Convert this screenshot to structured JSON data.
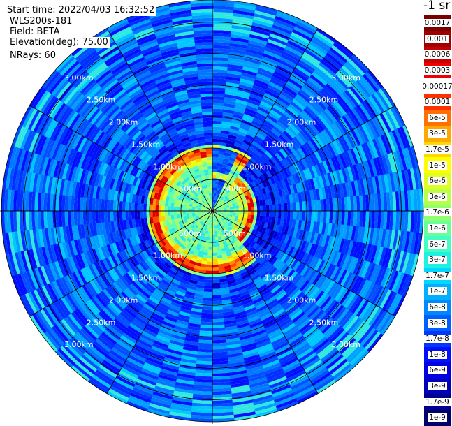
{
  "info": {
    "start_time": "Start time: 2022/04/03 16:32:52",
    "device": "WLS200s-181",
    "field": "Field: BETA",
    "elevation": "Elevation(deg): 75.00",
    "nrays": "NRays: 60"
  },
  "colorbar": {
    "unit_label": "-1 sr",
    "labels": [
      "0.0017",
      "0.001",
      "0.0006",
      "0.0003",
      "0.00017",
      "0.0001",
      "6e-5",
      "3e-5",
      "1.7e-5",
      "1e-5",
      "6e-6",
      "3e-6",
      "1.7e-6",
      "1e-6",
      "6e-7",
      "3e-7",
      "1.7e-7",
      "1e-7",
      "6e-8",
      "3e-8",
      "1.7e-8",
      "1e-8",
      "6e-9",
      "3e-9",
      "1.7e-9",
      "1e-9"
    ],
    "colors": [
      "#7a0000",
      "#a00000",
      "#c80000",
      "#ee0000",
      "#ffffff",
      "#ff3000",
      "#ff7000",
      "#ffa800",
      "#ffd800",
      "#ffff00",
      "#e0ff20",
      "#b8ff48",
      "#90ff70",
      "#68ff98",
      "#40ffc0",
      "#20f0e0",
      "#00d8ff",
      "#00b0ff",
      "#0088ff",
      "#0060ff",
      "#0038ff",
      "#0010ff",
      "#0000e0",
      "#0000b8",
      "#000090",
      "#00006a"
    ]
  },
  "chart_data": {
    "type": "heatmap",
    "projection": "polar (PPI)",
    "field": "BETA",
    "elevation_deg": 75.0,
    "n_rays": 60,
    "range_rings_labels": [
      "500m",
      "1.00km",
      "1.50km",
      "2.00km",
      "2.50km",
      "3.00km"
    ],
    "range_rings_m": [
      500,
      1000,
      1500,
      2000,
      2500,
      3000
    ],
    "max_range_m": 3350,
    "spoke_step_deg": 30,
    "color_scale": "log",
    "value_range": [
      1e-09,
      0.0017
    ],
    "features": {
      "near_field_high_backscatter_ring_m": [
        700,
        900
      ],
      "near_field_value_approx": 0.0001,
      "inner_value_approx": 1e-06,
      "background_value_approx": 1e-08,
      "gap_sector_deg": [
        0,
        25
      ]
    }
  }
}
